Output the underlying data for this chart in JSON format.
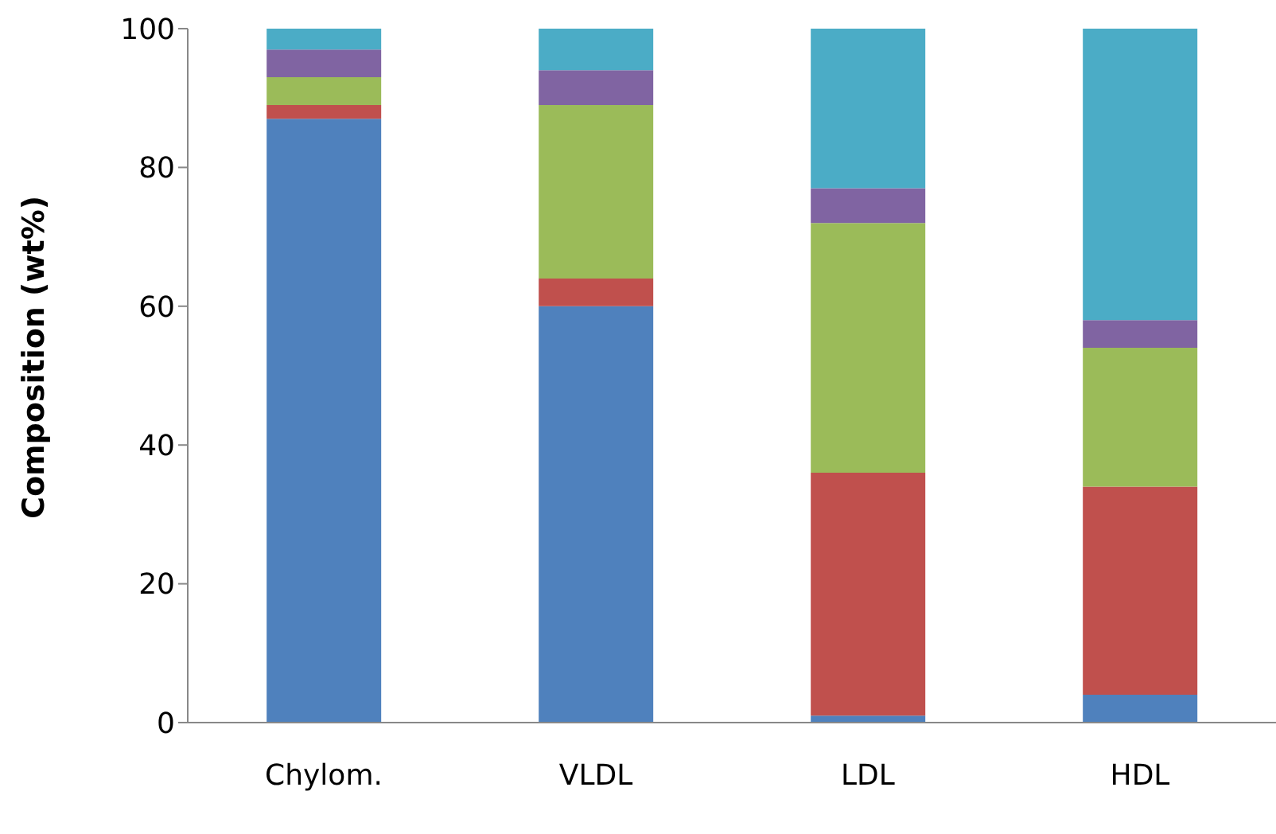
{
  "chart_data": {
    "type": "bar",
    "stacked": true,
    "ylabel": "Composition (wt%)",
    "categories": [
      "Chylom.",
      "VLDL",
      "LDL",
      "HDL"
    ],
    "series": [
      {
        "color": "#4f81bd",
        "values": [
          87,
          60,
          1,
          4
        ]
      },
      {
        "color": "#c0504d",
        "values": [
          2,
          4,
          35,
          30
        ]
      },
      {
        "color": "#9bbb59",
        "values": [
          4,
          25,
          36,
          20
        ]
      },
      {
        "color": "#8064a2",
        "values": [
          4,
          5,
          5,
          4
        ]
      },
      {
        "color": "#4bacc6",
        "values": [
          3,
          6,
          23,
          42
        ]
      }
    ],
    "ylim": [
      0,
      100
    ],
    "yticks": [
      0,
      20,
      40,
      60,
      80,
      100
    ],
    "grid": false,
    "legend": false
  }
}
